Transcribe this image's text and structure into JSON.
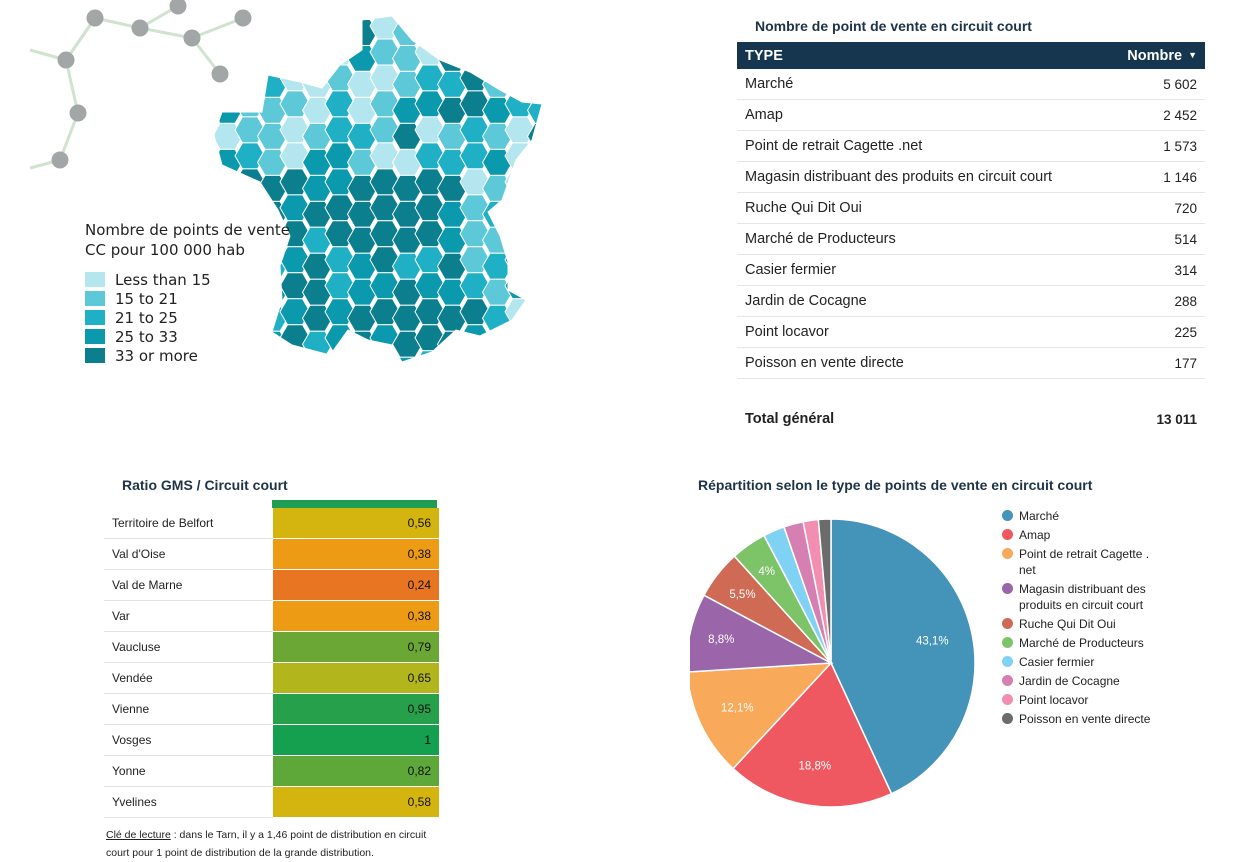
{
  "map": {
    "legend_title": "Nombre de points de vente CC pour 100 000 hab",
    "legend": [
      {
        "label": "Less than 15",
        "color": "#b3e6ee"
      },
      {
        "label": "15 to 21",
        "color": "#5cc8d8"
      },
      {
        "label": "21 to 25",
        "color": "#1fb0c6"
      },
      {
        "label": "25 to 33",
        "color": "#0a99ad"
      },
      {
        "label": "33 or more",
        "color": "#0b7f8e"
      }
    ]
  },
  "type_table": {
    "title": "Nombre de point de vente en circuit court",
    "header_type": "TYPE",
    "header_count": "Nombre",
    "rows": [
      {
        "type": "Marché",
        "count": "5 602"
      },
      {
        "type": "Amap",
        "count": "2 452"
      },
      {
        "type": "Point de retrait Cagette .net",
        "count": "1 573"
      },
      {
        "type": "Magasin distribuant des produits en circuit court",
        "count": "1 146"
      },
      {
        "type": "Ruche Qui Dit Oui",
        "count": "720"
      },
      {
        "type": "Marché de Producteurs",
        "count": "514"
      },
      {
        "type": "Casier fermier",
        "count": "314"
      },
      {
        "type": "Jardin de Cocagne",
        "count": "288"
      },
      {
        "type": "Point locavor",
        "count": "225"
      },
      {
        "type": "Poisson en vente directe",
        "count": "177"
      }
    ],
    "total_label": "Total général",
    "total_value": "13 011"
  },
  "ratio": {
    "title": "Ratio GMS / Circuit court",
    "top_bar_color": "#1e9e52",
    "rows": [
      {
        "name": "Territoire de Belfort",
        "value": "0,56",
        "color": "#d4b50f"
      },
      {
        "name": "Val d'Oise",
        "value": "0,38",
        "color": "#ed9a14"
      },
      {
        "name": "Val de Marne",
        "value": "0,24",
        "color": "#e87522"
      },
      {
        "name": "Var",
        "value": "0,38",
        "color": "#ed9a14"
      },
      {
        "name": "Vaucluse",
        "value": "0,79",
        "color": "#6aa735"
      },
      {
        "name": "Vendée",
        "value": "0,65",
        "color": "#b2b51c"
      },
      {
        "name": "Vienne",
        "value": "0,95",
        "color": "#27a04c"
      },
      {
        "name": "Vosges",
        "value": "1",
        "color": "#15a050"
      },
      {
        "name": "Yonne",
        "value": "0,82",
        "color": "#5ea83a"
      },
      {
        "name": "Yvelines",
        "value": "0,58",
        "color": "#d4b50f"
      }
    ],
    "note_key": "Clé de lecture",
    "note_text": " : dans le Tarn, il y a 1,46 point de distribution en circuit court pour 1 point de distribution de la grande distribution."
  },
  "chart_data": {
    "type": "pie",
    "title": "Répartition selon le type de points de vente en circuit court",
    "slices": [
      {
        "label": "Marché",
        "value": 43.1,
        "display": "43,1%",
        "color": "#4493b8"
      },
      {
        "label": "Amap",
        "value": 18.8,
        "display": "18,8%",
        "color": "#ef5761"
      },
      {
        "label": "Point de retrait Cagette . net",
        "value": 12.1,
        "display": "12,1%",
        "color": "#f8a95a"
      },
      {
        "label": "Magasin distribuant des produits en circuit court",
        "value": 8.8,
        "display": "8,8%",
        "color": "#9a66a9"
      },
      {
        "label": "Ruche Qui Dit Oui",
        "value": 5.5,
        "display": "5,5%",
        "color": "#cf6a55"
      },
      {
        "label": "Marché de Producteurs",
        "value": 4.0,
        "display": "4%",
        "color": "#7dc469"
      },
      {
        "label": "Casier fermier",
        "value": 2.4,
        "display": "",
        "color": "#80d2f5"
      },
      {
        "label": "Jardin de Cocagne",
        "value": 2.2,
        "display": "",
        "color": "#d67fb2"
      },
      {
        "label": "Point locavor",
        "value": 1.7,
        "display": "",
        "color": "#f28fb0"
      },
      {
        "label": "Poisson en vente directe",
        "value": 1.4,
        "display": "",
        "color": "#6b6b6b"
      }
    ],
    "legend_position": "right"
  }
}
